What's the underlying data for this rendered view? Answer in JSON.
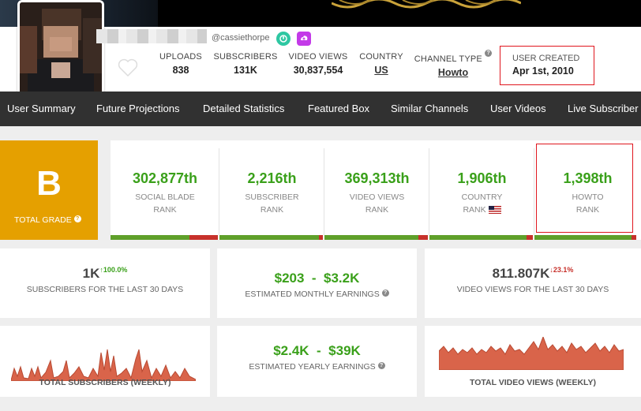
{
  "profile": {
    "handle": "@cassiethorpe"
  },
  "header_stats": [
    {
      "label": "UPLOADS",
      "value": "838"
    },
    {
      "label": "SUBSCRIBERS",
      "value": "131K"
    },
    {
      "label": "VIDEO VIEWS",
      "value": "30,837,554"
    },
    {
      "label": "COUNTRY",
      "value": "US"
    },
    {
      "label": "CHANNEL TYPE",
      "value": "Howto"
    }
  ],
  "user_created": {
    "label": "USER CREATED",
    "value": "Apr 1st, 2010"
  },
  "nav": [
    "User Summary",
    "Future Projections",
    "Detailed Statistics",
    "Featured Box",
    "Similar Channels",
    "User Videos",
    "Live Subscriber"
  ],
  "grade": {
    "letter": "B",
    "label": "TOTAL GRADE"
  },
  "ranks": [
    {
      "value": "302,877th",
      "label1": "SOCIAL BLADE",
      "label2": "RANK",
      "bar_green": 0.73
    },
    {
      "value": "2,216th",
      "label1": "SUBSCRIBER",
      "label2": "RANK",
      "bar_green": 0.96
    },
    {
      "value": "369,313th",
      "label1": "VIDEO VIEWS",
      "label2": "RANK",
      "bar_green": 0.9
    },
    {
      "value": "1,906th",
      "label1": "COUNTRY",
      "label2": "RANK",
      "bar_green": 0.94
    },
    {
      "value": "1,398th",
      "label1": "HOWTO",
      "label2": "RANK",
      "bar_green": 0.95
    }
  ],
  "summary": {
    "subs30": {
      "value": "1K",
      "change": "↑100.0%",
      "label": "SUBSCRIBERS FOR THE LAST 30 DAYS"
    },
    "monthly": {
      "low": "$203",
      "sep": "-",
      "high": "$3.2K",
      "label": "ESTIMATED MONTHLY EARNINGS"
    },
    "views30": {
      "value": "811.807K",
      "change": "↓23.1%",
      "label": "VIDEO VIEWS FOR THE LAST 30 DAYS"
    },
    "yearly": {
      "low": "$2.4K",
      "sep": "-",
      "high": "$39K",
      "label": "ESTIMATED YEARLY EARNINGS"
    }
  },
  "charts": {
    "subs_title": "TOTAL SUBSCRIBERS (WEEKLY)",
    "views_title": "TOTAL VIDEO VIEWS (WEEKLY)"
  },
  "colors": {
    "green": "#3aa01a",
    "red": "#c7312b",
    "grade_orange": "#e5a000",
    "nav_bg": "#313131",
    "chart_fill": "#d9644a"
  }
}
